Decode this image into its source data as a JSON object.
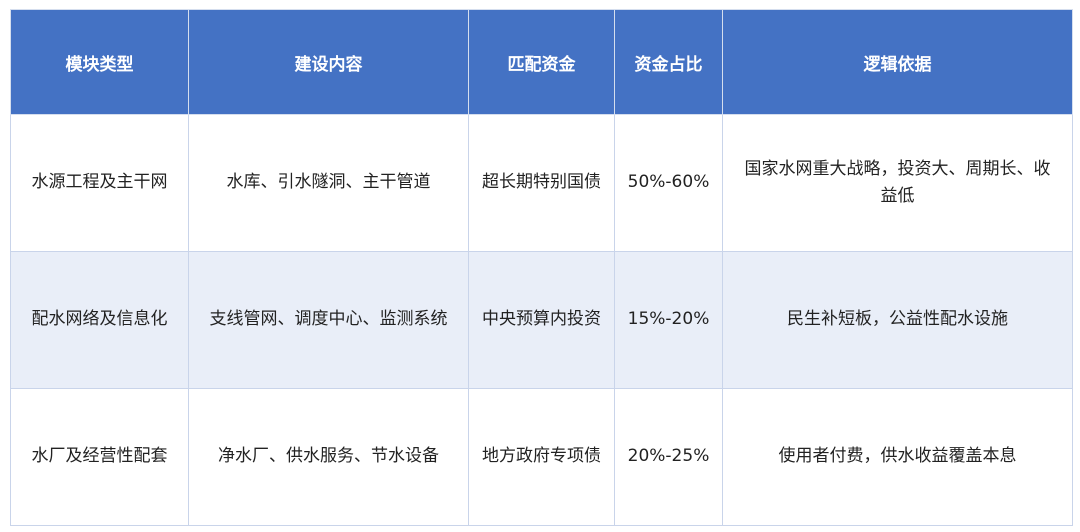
{
  "table": {
    "header": [
      "模块类型",
      "建设内容",
      "匹配资金",
      "资金占比",
      "逻辑依据"
    ],
    "rows": [
      [
        "水源工程及主干网",
        "水库、引水隧洞、主干管道",
        "超长期特别国债",
        "50%-60%",
        "国家水网重大战略，投资大、周期长、收益低"
      ],
      [
        "配水网络及信息化",
        "支线管网、调度中心、监测系统",
        "中央预算内投资",
        "15%-20%",
        "民生补短板，公益性配水设施"
      ],
      [
        "水厂及经营性配套",
        "净水厂、供水服务、节水设备",
        "地方政府专项债",
        "20%-25%",
        "使用者付费，供水收益覆盖本息"
      ]
    ]
  }
}
